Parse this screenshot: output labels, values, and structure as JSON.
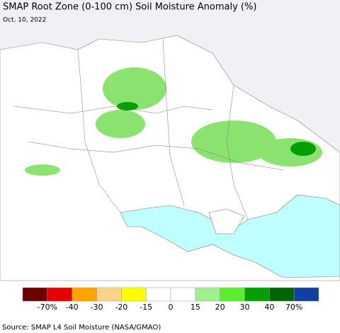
{
  "header": {
    "title": "SMAP Root Zone (0-100 cm) Soil Moisture Anomaly (%)",
    "date": "Oct. 10, 2022"
  },
  "legend": {
    "colors": [
      "#6b0000",
      "#e60000",
      "#ffa500",
      "#ffd28a",
      "#ffff00",
      "#ffffff",
      "#ffffff",
      "#a0f090",
      "#5af030",
      "#00a000",
      "#006400",
      "#1040a0"
    ],
    "labels": [
      "-70%",
      "-40",
      "-30",
      "-20",
      "-15",
      "0",
      "15",
      "20",
      "30",
      "40",
      "70%"
    ]
  },
  "source": "Source: SMAP L4 Soil Moisture (NASA/GMAO)"
}
